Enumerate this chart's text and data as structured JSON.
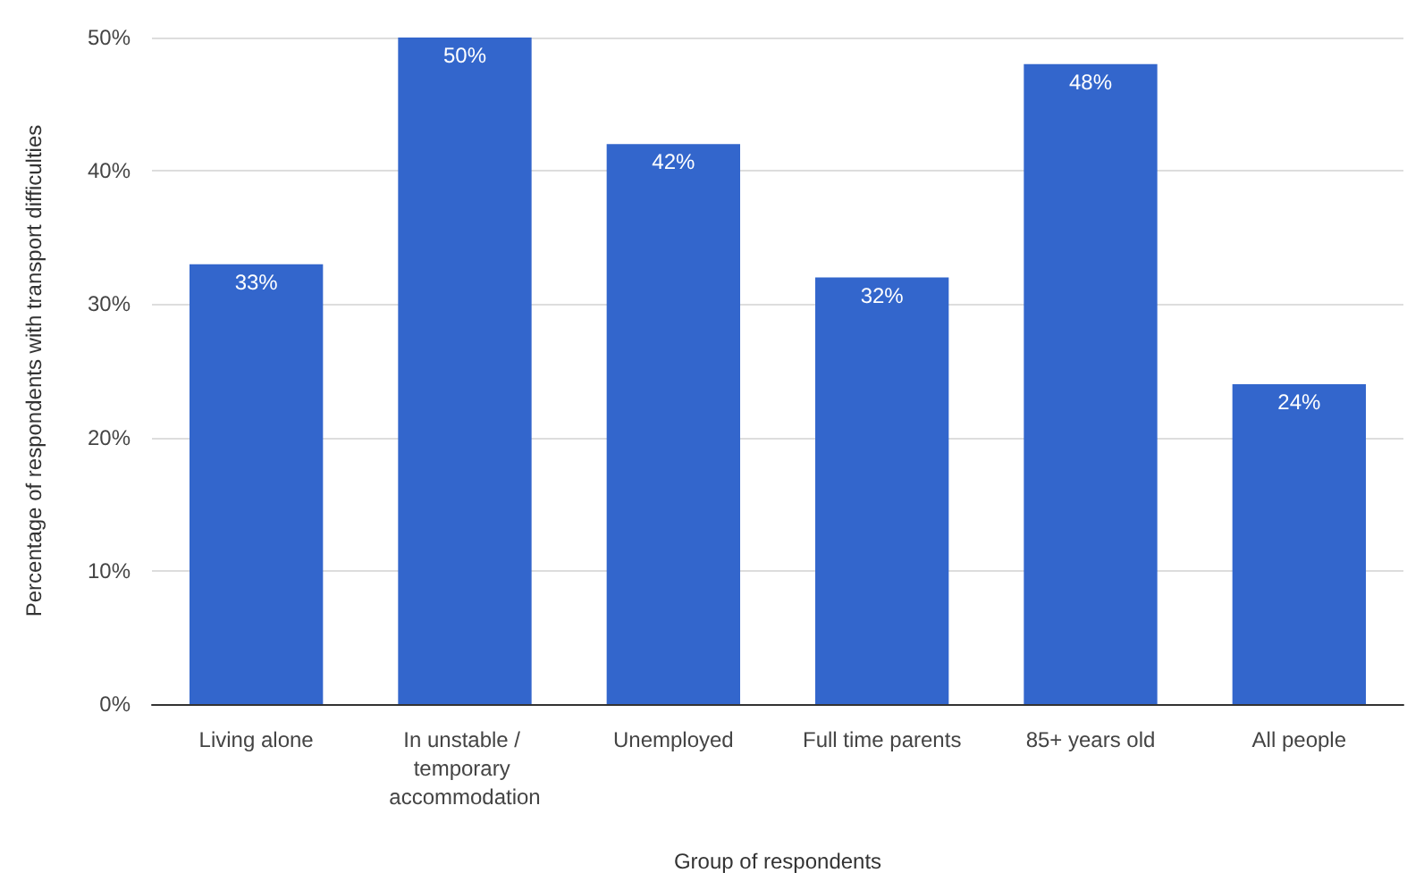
{
  "chart_data": {
    "type": "bar",
    "xlabel": "Group of respondents",
    "ylabel": "Percentage of respondents with transport difficulties",
    "categories": [
      "Living alone",
      "In unstable / temporary accommodation",
      "Unemployed",
      "Full time parents",
      "85+ years old",
      "All people"
    ],
    "values": [
      33,
      50,
      42,
      32,
      48,
      24
    ],
    "value_labels": [
      "33%",
      "50%",
      "42%",
      "32%",
      "48%",
      "24%"
    ],
    "color": "#3366cc",
    "ylim": [
      0,
      50
    ],
    "yticks": [
      {
        "value": 0,
        "label": "0%"
      },
      {
        "value": 10,
        "label": "10%"
      },
      {
        "value": 20,
        "label": "20%"
      },
      {
        "value": 30,
        "label": "30%"
      },
      {
        "value": 40,
        "label": "40%"
      },
      {
        "value": 50,
        "label": "50%"
      }
    ],
    "grid": "y"
  }
}
